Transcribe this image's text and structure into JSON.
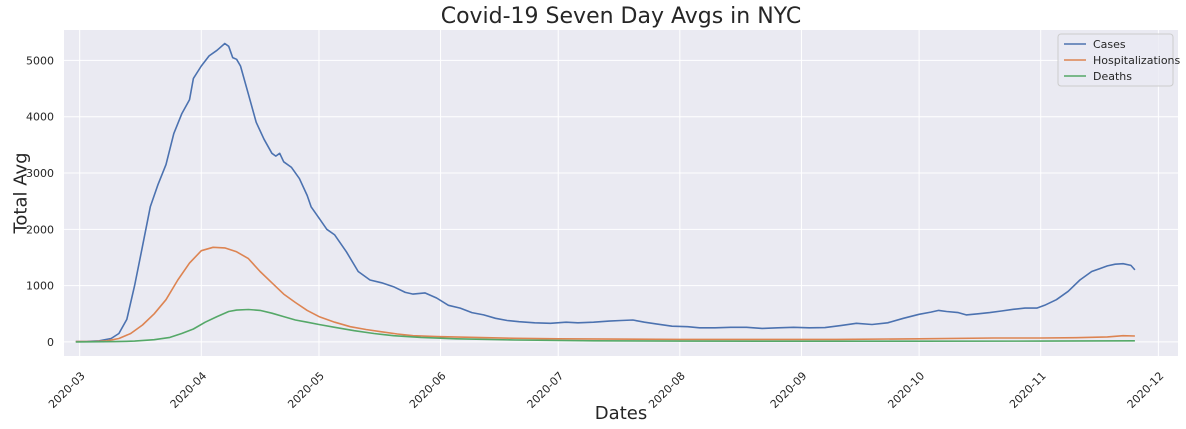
{
  "chart_data": {
    "type": "line",
    "title": "Covid-19 Seven Day Avgs in NYC",
    "xlabel": "Dates",
    "ylabel": "Total Avg",
    "x_ticks": [
      "2020-03",
      "2020-04",
      "2020-05",
      "2020-06",
      "2020-07",
      "2020-08",
      "2020-09",
      "2020-10",
      "2020-11",
      "2020-12"
    ],
    "y_ticks": [
      0,
      1000,
      2000,
      3000,
      4000,
      5000
    ],
    "xlim": [
      "2020-02-26",
      "2020-12-06"
    ],
    "ylim": [
      -250,
      5540
    ],
    "grid": true,
    "legend_position": "top-right",
    "background_color": "#eaeaf2",
    "grid_color": "#ffffff",
    "series": [
      {
        "name": "Cases",
        "color": "#4c72b0",
        "points": [
          [
            "2020-02-29",
            5
          ],
          [
            "2020-03-03",
            10
          ],
          [
            "2020-03-06",
            20
          ],
          [
            "2020-03-09",
            60
          ],
          [
            "2020-03-11",
            150
          ],
          [
            "2020-03-13",
            400
          ],
          [
            "2020-03-15",
            1000
          ],
          [
            "2020-03-17",
            1700
          ],
          [
            "2020-03-19",
            2400
          ],
          [
            "2020-03-21",
            2800
          ],
          [
            "2020-03-23",
            3150
          ],
          [
            "2020-03-25",
            3700
          ],
          [
            "2020-03-27",
            4050
          ],
          [
            "2020-03-29",
            4300
          ],
          [
            "2020-03-30",
            4680
          ],
          [
            "2020-04-01",
            4900
          ],
          [
            "2020-04-03",
            5080
          ],
          [
            "2020-04-05",
            5180
          ],
          [
            "2020-04-07",
            5300
          ],
          [
            "2020-04-08",
            5250
          ],
          [
            "2020-04-09",
            5050
          ],
          [
            "2020-04-10",
            5020
          ],
          [
            "2020-04-11",
            4900
          ],
          [
            "2020-04-13",
            4400
          ],
          [
            "2020-04-15",
            3900
          ],
          [
            "2020-04-17",
            3600
          ],
          [
            "2020-04-19",
            3350
          ],
          [
            "2020-04-20",
            3300
          ],
          [
            "2020-04-21",
            3350
          ],
          [
            "2020-04-22",
            3200
          ],
          [
            "2020-04-24",
            3100
          ],
          [
            "2020-04-26",
            2900
          ],
          [
            "2020-04-28",
            2600
          ],
          [
            "2020-04-29",
            2400
          ],
          [
            "2020-05-01",
            2200
          ],
          [
            "2020-05-03",
            2000
          ],
          [
            "2020-05-05",
            1900
          ],
          [
            "2020-05-08",
            1600
          ],
          [
            "2020-05-11",
            1250
          ],
          [
            "2020-05-14",
            1100
          ],
          [
            "2020-05-17",
            1050
          ],
          [
            "2020-05-20",
            980
          ],
          [
            "2020-05-23",
            880
          ],
          [
            "2020-05-25",
            850
          ],
          [
            "2020-05-28",
            870
          ],
          [
            "2020-05-31",
            780
          ],
          [
            "2020-06-03",
            650
          ],
          [
            "2020-06-06",
            600
          ],
          [
            "2020-06-09",
            520
          ],
          [
            "2020-06-12",
            480
          ],
          [
            "2020-06-15",
            420
          ],
          [
            "2020-06-18",
            380
          ],
          [
            "2020-06-21",
            360
          ],
          [
            "2020-06-25",
            340
          ],
          [
            "2020-06-29",
            330
          ],
          [
            "2020-07-03",
            350
          ],
          [
            "2020-07-06",
            340
          ],
          [
            "2020-07-10",
            350
          ],
          [
            "2020-07-14",
            370
          ],
          [
            "2020-07-17",
            380
          ],
          [
            "2020-07-20",
            390
          ],
          [
            "2020-07-23",
            350
          ],
          [
            "2020-07-26",
            320
          ],
          [
            "2020-07-30",
            280
          ],
          [
            "2020-08-03",
            270
          ],
          [
            "2020-08-06",
            250
          ],
          [
            "2020-08-10",
            250
          ],
          [
            "2020-08-14",
            260
          ],
          [
            "2020-08-18",
            260
          ],
          [
            "2020-08-22",
            240
          ],
          [
            "2020-08-26",
            250
          ],
          [
            "2020-08-30",
            260
          ],
          [
            "2020-09-03",
            250
          ],
          [
            "2020-09-07",
            255
          ],
          [
            "2020-09-11",
            290
          ],
          [
            "2020-09-15",
            330
          ],
          [
            "2020-09-19",
            310
          ],
          [
            "2020-09-23",
            340
          ],
          [
            "2020-09-27",
            420
          ],
          [
            "2020-10-01",
            490
          ],
          [
            "2020-10-04",
            530
          ],
          [
            "2020-10-06",
            560
          ],
          [
            "2020-10-08",
            540
          ],
          [
            "2020-10-11",
            520
          ],
          [
            "2020-10-13",
            480
          ],
          [
            "2020-10-16",
            500
          ],
          [
            "2020-10-19",
            520
          ],
          [
            "2020-10-22",
            550
          ],
          [
            "2020-10-25",
            580
          ],
          [
            "2020-10-28",
            600
          ],
          [
            "2020-10-31",
            600
          ],
          [
            "2020-11-02",
            650
          ],
          [
            "2020-11-05",
            750
          ],
          [
            "2020-11-08",
            900
          ],
          [
            "2020-11-11",
            1100
          ],
          [
            "2020-11-14",
            1250
          ],
          [
            "2020-11-16",
            1300
          ],
          [
            "2020-11-18",
            1350
          ],
          [
            "2020-11-20",
            1380
          ],
          [
            "2020-11-22",
            1390
          ],
          [
            "2020-11-24",
            1360
          ],
          [
            "2020-11-25",
            1280
          ]
        ]
      },
      {
        "name": "Hospitalizations",
        "color": "#dd8452",
        "points": [
          [
            "2020-02-29",
            5
          ],
          [
            "2020-03-05",
            10
          ],
          [
            "2020-03-08",
            20
          ],
          [
            "2020-03-11",
            60
          ],
          [
            "2020-03-14",
            150
          ],
          [
            "2020-03-17",
            300
          ],
          [
            "2020-03-20",
            500
          ],
          [
            "2020-03-23",
            750
          ],
          [
            "2020-03-26",
            1100
          ],
          [
            "2020-03-29",
            1400
          ],
          [
            "2020-04-01",
            1620
          ],
          [
            "2020-04-04",
            1680
          ],
          [
            "2020-04-07",
            1670
          ],
          [
            "2020-04-10",
            1600
          ],
          [
            "2020-04-13",
            1480
          ],
          [
            "2020-04-16",
            1250
          ],
          [
            "2020-04-19",
            1050
          ],
          [
            "2020-04-22",
            850
          ],
          [
            "2020-04-25",
            700
          ],
          [
            "2020-04-28",
            560
          ],
          [
            "2020-05-01",
            450
          ],
          [
            "2020-05-05",
            350
          ],
          [
            "2020-05-09",
            270
          ],
          [
            "2020-05-13",
            220
          ],
          [
            "2020-05-17",
            180
          ],
          [
            "2020-05-21",
            140
          ],
          [
            "2020-05-25",
            110
          ],
          [
            "2020-05-31",
            95
          ],
          [
            "2020-06-10",
            80
          ],
          [
            "2020-06-20",
            65
          ],
          [
            "2020-07-01",
            55
          ],
          [
            "2020-07-15",
            50
          ],
          [
            "2020-08-01",
            45
          ],
          [
            "2020-08-20",
            45
          ],
          [
            "2020-09-10",
            45
          ],
          [
            "2020-10-01",
            55
          ],
          [
            "2020-10-20",
            70
          ],
          [
            "2020-11-01",
            70
          ],
          [
            "2020-11-10",
            75
          ],
          [
            "2020-11-18",
            90
          ],
          [
            "2020-11-22",
            110
          ],
          [
            "2020-11-25",
            105
          ]
        ]
      },
      {
        "name": "Deaths",
        "color": "#55a868",
        "points": [
          [
            "2020-02-29",
            0
          ],
          [
            "2020-03-10",
            5
          ],
          [
            "2020-03-15",
            15
          ],
          [
            "2020-03-20",
            40
          ],
          [
            "2020-03-24",
            80
          ],
          [
            "2020-03-27",
            150
          ],
          [
            "2020-03-30",
            230
          ],
          [
            "2020-04-02",
            350
          ],
          [
            "2020-04-05",
            450
          ],
          [
            "2020-04-08",
            540
          ],
          [
            "2020-04-10",
            565
          ],
          [
            "2020-04-13",
            575
          ],
          [
            "2020-04-16",
            560
          ],
          [
            "2020-04-19",
            510
          ],
          [
            "2020-04-22",
            450
          ],
          [
            "2020-04-25",
            390
          ],
          [
            "2020-04-28",
            350
          ],
          [
            "2020-05-01",
            310
          ],
          [
            "2020-05-05",
            260
          ],
          [
            "2020-05-10",
            200
          ],
          [
            "2020-05-15",
            150
          ],
          [
            "2020-05-20",
            110
          ],
          [
            "2020-05-27",
            80
          ],
          [
            "2020-06-05",
            55
          ],
          [
            "2020-06-20",
            35
          ],
          [
            "2020-07-10",
            20
          ],
          [
            "2020-08-01",
            15
          ],
          [
            "2020-09-01",
            12
          ],
          [
            "2020-10-01",
            12
          ],
          [
            "2020-11-01",
            15
          ],
          [
            "2020-11-25",
            20
          ]
        ]
      }
    ]
  }
}
